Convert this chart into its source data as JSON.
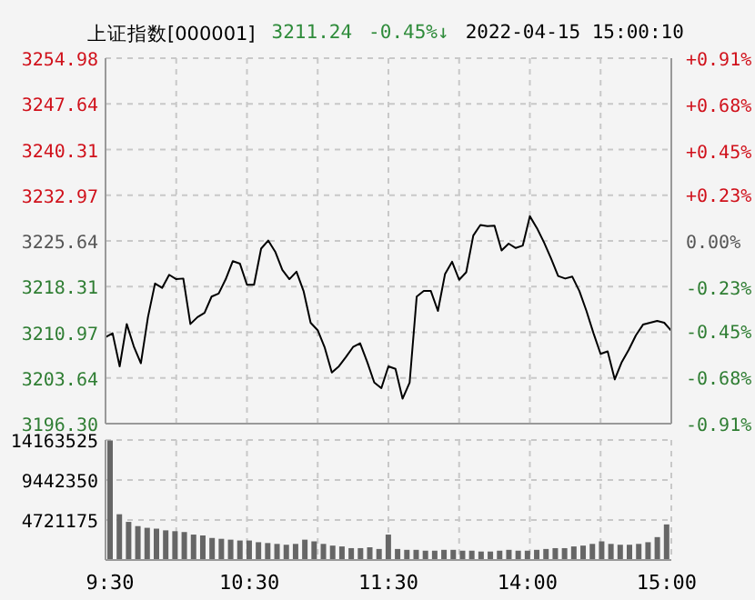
{
  "chart_data": [
    {
      "type": "line",
      "title": "上证指数[000001]",
      "annotations": [
        "3211.24",
        "-0.45%↓",
        "2022-04-15 15:00:10"
      ],
      "color": "#000000",
      "categories": [
        null,
        null,
        null,
        null,
        null,
        null,
        null,
        null,
        null,
        null,
        null,
        null,
        null,
        null,
        null,
        null,
        null,
        null,
        null,
        null,
        null,
        null,
        null,
        null,
        null,
        null,
        null,
        null,
        null,
        null,
        null,
        null,
        null,
        null,
        null,
        null,
        null,
        null,
        null,
        null,
        null,
        null,
        null,
        null,
        null,
        null,
        null,
        null,
        null,
        null,
        null,
        null,
        null,
        null,
        null,
        null,
        null,
        null,
        null,
        null,
        null,
        null,
        null,
        null,
        null,
        null,
        null,
        null,
        null,
        null,
        null,
        null,
        null,
        null,
        null,
        null,
        null,
        null,
        null,
        null,
        null
      ],
      "values": [
        3210.2,
        3210.8,
        3205.5,
        3212.3,
        3208.7,
        3206.0,
        3213.4,
        3218.8,
        3218.1,
        3220.2,
        3219.5,
        3219.6,
        3212.3,
        3213.4,
        3214.1,
        3216.7,
        3217.2,
        3219.5,
        3222.4,
        3222.0,
        3218.6,
        3218.6,
        3224.4,
        3225.7,
        3223.9,
        3221.0,
        3219.5,
        3220.7,
        3217.6,
        3212.5,
        3211.3,
        3208.5,
        3204.5,
        3205.5,
        3207.0,
        3208.6,
        3209.2,
        3206.2,
        3202.9,
        3202.0,
        3205.5,
        3205.1,
        3200.3,
        3202.9,
        3216.7,
        3217.6,
        3217.6,
        3214.4,
        3220.3,
        3222.3,
        3219.4,
        3220.6,
        3226.5,
        3228.2,
        3228.0,
        3228.1,
        3224.1,
        3225.2,
        3224.5,
        3224.9,
        3229.6,
        3227.7,
        3225.4,
        3222.8,
        3220.0,
        3219.6,
        3219.9,
        3217.6,
        3214.4,
        3210.8,
        3207.5,
        3207.9,
        3203.4,
        3206.2,
        3208.2,
        3210.5,
        3212.2,
        3212.5,
        3212.8,
        3212.5,
        3211.2
      ],
      "ylim": [
        3196.3,
        3254.98
      ],
      "yticks": [
        {
          "value": 3196.3,
          "label": "3196.30"
        },
        3203.64,
        3210.97,
        3218.31,
        3225.64,
        3232.97,
        3240.31,
        3247.64,
        3254.98
      ],
      "y2lim": [
        -0.91,
        0.91
      ],
      "y2ticks": [
        {
          "value": -0.91,
          "label": "-0.91%"
        },
        {
          "value": -0.68,
          "label": "-0.68%"
        },
        {
          "value": -0.45,
          "label": "-0.45%"
        },
        {
          "value": -0.23,
          "label": "-0.23%"
        },
        {
          "value": 0,
          "label": "0.00%"
        },
        {
          "value": 0.23,
          "label": "+0.23%"
        },
        {
          "value": 0.45,
          "label": "+0.45%"
        },
        {
          "value": 0.68,
          "label": "+0.68%"
        },
        {
          "value": 0.91,
          "label": "+0.91%"
        }
      ],
      "grid": true,
      "tick_labels": "y"
    },
    {
      "type": "bar",
      "color": "#666666",
      "categories": [
        "9:30",
        null,
        null,
        null,
        null,
        null,
        null,
        null,
        null,
        null,
        null,
        null,
        null,
        null,
        null,
        "10:30",
        null,
        null,
        null,
        null,
        null,
        null,
        null,
        null,
        null,
        null,
        null,
        null,
        null,
        null,
        "11:30",
        null,
        null,
        null,
        null,
        null,
        null,
        null,
        null,
        null,
        null,
        null,
        null,
        null,
        null,
        "14:00",
        null,
        null,
        null,
        null,
        null,
        null,
        null,
        null,
        null,
        null,
        null,
        null,
        null,
        null,
        "15:00"
      ],
      "values": [
        14100000,
        5400000,
        4500000,
        4000000,
        3800000,
        3700000,
        3500000,
        3400000,
        3300000,
        3000000,
        2900000,
        2600000,
        2500000,
        2400000,
        2300000,
        2300000,
        2100000,
        2000000,
        1900000,
        1800000,
        1900000,
        2400000,
        2200000,
        1900000,
        1700000,
        1600000,
        1400000,
        1400000,
        1500000,
        1300000,
        3000000,
        1300000,
        1200000,
        1200000,
        1100000,
        1100000,
        1200000,
        1200000,
        1100000,
        1100000,
        1000000,
        1000000,
        1100000,
        1200000,
        1100000,
        1100000,
        1200000,
        1300000,
        1400000,
        1400000,
        1600000,
        1700000,
        1900000,
        2200000,
        1900000,
        1800000,
        1800000,
        1900000,
        2100000,
        2700000,
        4200000
      ],
      "ylim": [
        0,
        14163525
      ],
      "yticks": [
        4721175,
        9442350,
        14163525
      ],
      "grid": true
    }
  ]
}
